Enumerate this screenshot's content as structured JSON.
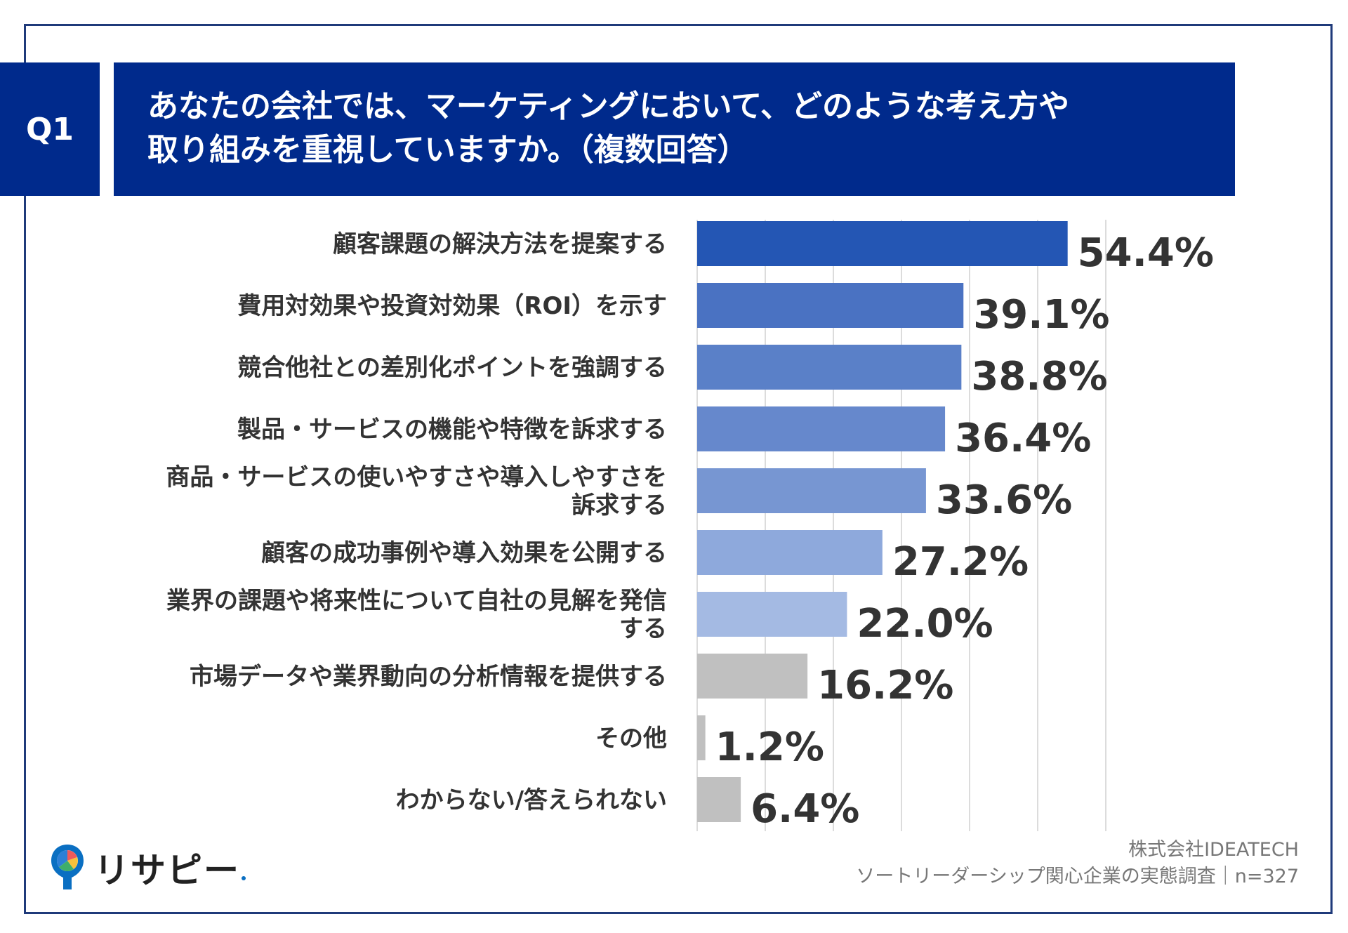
{
  "question": {
    "number": "Q1",
    "title_line1": "あなたの会社では、マーケティングにおいて、どのような考え方や",
    "title_line2": "取り組みを重視していますか。（複数回答）"
  },
  "chart_data": {
    "type": "bar",
    "orientation": "horizontal",
    "categories": [
      [
        "顧客課題の解決方法を提案する"
      ],
      [
        "費用対効果や投資対効果（ROI）を示す"
      ],
      [
        "競合他社との差別化ポイントを強調する"
      ],
      [
        "製品・サービスの機能や特徴を訴求する"
      ],
      [
        "商品・サービスの使いやすさや導入しやすさを",
        "訴求する"
      ],
      [
        "顧客の成功事例や導入効果を公開する"
      ],
      [
        "業界の課題や将来性について自社の見解を発信",
        "する"
      ],
      [
        "市場データや業界動向の分析情報を提供する"
      ],
      [
        "その他"
      ],
      [
        "わからない/答えられない"
      ]
    ],
    "values": [
      54.4,
      39.1,
      38.8,
      36.4,
      33.6,
      27.2,
      22.0,
      16.2,
      1.2,
      6.4
    ],
    "value_labels": [
      "54.4%",
      "39.1%",
      "38.8%",
      "36.4%",
      "33.6%",
      "27.2%",
      "22.0%",
      "16.2%",
      "1.2%",
      "6.4%"
    ],
    "bar_colors": [
      "#2456b4",
      "#4a72c2",
      "#5a80c8",
      "#6688cc",
      "#7796d2",
      "#8ea9dc",
      "#a4bae3",
      "#c0c0c0",
      "#c0c0c0",
      "#c0c0c0"
    ],
    "xlim": [
      0,
      60
    ],
    "grid": true,
    "gridline_color": "#dcdcdc"
  },
  "source": {
    "line1": "株式会社IDEATECH",
    "line2": "ソートリーダーシップ関心企業の実態調査｜n=327"
  },
  "logo": {
    "text": "リサピー"
  },
  "colors": {
    "header_bg": "#002a8c",
    "frame": "#1f3a7a",
    "text": "#333333"
  }
}
